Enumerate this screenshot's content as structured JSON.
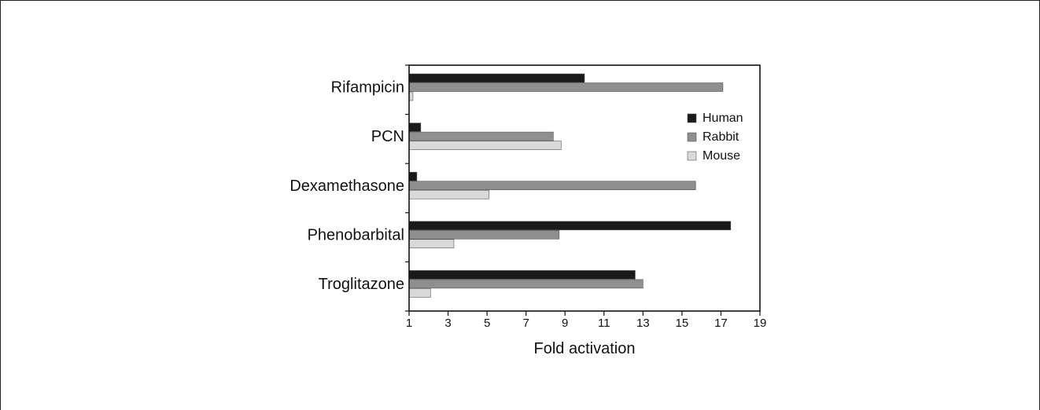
{
  "chart_data": {
    "type": "bar",
    "orientation": "horizontal",
    "categories": [
      "Rifampicin",
      "PCN",
      "Dexamethasone",
      "Phenobarbital",
      "Troglitazone"
    ],
    "series": [
      {
        "name": "Human",
        "color": "#1a1a1a",
        "values": [
          10.0,
          1.6,
          1.4,
          17.5,
          12.6
        ]
      },
      {
        "name": "Rabbit",
        "color": "#8f8f8f",
        "values": [
          17.1,
          8.4,
          15.7,
          8.7,
          13.0
        ]
      },
      {
        "name": "Mouse",
        "color": "#d9d9d9",
        "values": [
          1.2,
          8.8,
          5.1,
          3.3,
          2.1
        ]
      }
    ],
    "xlabel": "Fold activation",
    "ylabel": "",
    "xlim": [
      1,
      19
    ],
    "xticks": [
      "1",
      "3",
      "5",
      "7",
      "9",
      "11",
      "13",
      "15",
      "17",
      "19"
    ],
    "grid": false,
    "legend_position": "top-right"
  }
}
